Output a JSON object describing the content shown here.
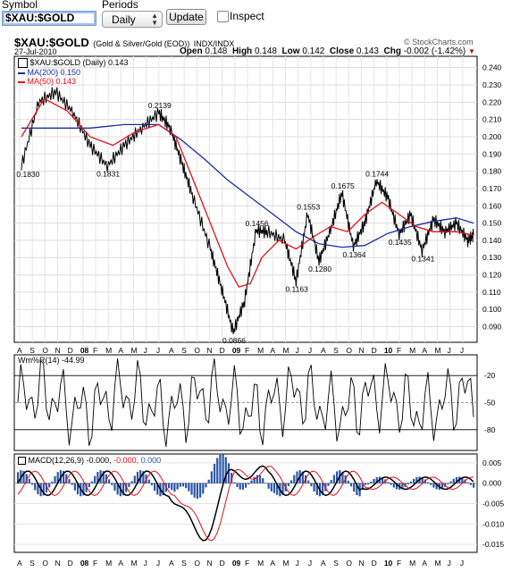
{
  "form": {
    "symbol_label": "Symbol",
    "symbol_value": "$XAU:$GOLD",
    "periods_label": "Periods",
    "periods_value": "Daily",
    "update_label": "Update",
    "inspect_label": "Inspect"
  },
  "header": {
    "symbol": "$XAU:$GOLD",
    "description": "(Gold & Silver/Gold (EOD))",
    "exchange": "INDX/INDX",
    "watermark": "© StockCharts.com",
    "date": "27-Jul-2010",
    "open_label": "Open",
    "open": "0.148",
    "high_label": "High",
    "high": "0.148",
    "low_label": "Low",
    "low": "0.142",
    "close_label": "Close",
    "close": "0.143",
    "chg_label": "Chg",
    "chg": "-0.002 (-1.42%)"
  },
  "colors": {
    "price": "#000000",
    "ma200": "#1a2ca0",
    "ma50": "#e0101a",
    "hist": "#2a55a8",
    "signal": "#e0101a",
    "down_arrow": "#cc0000"
  },
  "legend": {
    "price": "$XAU:$GOLD (Daily) 0.143",
    "ma200": "MA(200) 0.150",
    "ma50": "MA(50) 0.143",
    "willr": "Wm%R(14) -44.99",
    "macd_prefix": "MACD(12,26,9)",
    "macd_val": "-0.000,",
    "signal_val": "-0.000,",
    "hist_val": "0.000"
  },
  "chart_data": {
    "type": "line",
    "x_ticks": [
      "A",
      "S",
      "O",
      "N",
      "D",
      "08",
      "F",
      "M",
      "A",
      "M",
      "J",
      "J",
      "A",
      "S",
      "O",
      "N",
      "D",
      "09",
      "F",
      "M",
      "A",
      "M",
      "J",
      "J",
      "A",
      "S",
      "O",
      "N",
      "D",
      "10",
      "F",
      "M",
      "A",
      "M",
      "J",
      "J"
    ],
    "price_panel": {
      "y_ticks": [
        "0.240",
        "0.230",
        "0.220",
        "0.210",
        "0.200",
        "0.190",
        "0.180",
        "0.170",
        "0.160",
        "0.150",
        "0.140",
        "0.130",
        "0.120",
        "0.110",
        "0.100",
        "0.090"
      ],
      "ylim": [
        0.082,
        0.245
      ],
      "price_points": [
        [
          0,
          0.183
        ],
        [
          3,
          0.22
        ],
        [
          6,
          0.226
        ],
        [
          9,
          0.214
        ],
        [
          12,
          0.195
        ],
        [
          15,
          0.183
        ],
        [
          18,
          0.195
        ],
        [
          21,
          0.205
        ],
        [
          24,
          0.2139
        ],
        [
          26,
          0.205
        ],
        [
          28,
          0.185
        ],
        [
          30,
          0.165
        ],
        [
          33,
          0.135
        ],
        [
          35,
          0.112
        ],
        [
          37,
          0.0866
        ],
        [
          39,
          0.105
        ],
        [
          41,
          0.1456
        ],
        [
          43,
          0.145
        ],
        [
          46,
          0.14
        ],
        [
          48,
          0.1163
        ],
        [
          50,
          0.1553
        ],
        [
          52,
          0.128
        ],
        [
          54,
          0.146
        ],
        [
          56,
          0.1675
        ],
        [
          58,
          0.1364
        ],
        [
          60,
          0.15
        ],
        [
          62,
          0.1744
        ],
        [
          64,
          0.165
        ],
        [
          66,
          0.1435
        ],
        [
          68,
          0.155
        ],
        [
          70,
          0.1341
        ],
        [
          72,
          0.152
        ],
        [
          74,
          0.145
        ],
        [
          76,
          0.15
        ],
        [
          78,
          0.14
        ],
        [
          79,
          0.143
        ]
      ],
      "ma200_points": [
        [
          0,
          0.205
        ],
        [
          6,
          0.205
        ],
        [
          12,
          0.205
        ],
        [
          18,
          0.207
        ],
        [
          24,
          0.207
        ],
        [
          28,
          0.198
        ],
        [
          32,
          0.187
        ],
        [
          36,
          0.175
        ],
        [
          40,
          0.165
        ],
        [
          44,
          0.155
        ],
        [
          48,
          0.145
        ],
        [
          52,
          0.138
        ],
        [
          56,
          0.136
        ],
        [
          60,
          0.137
        ],
        [
          64,
          0.144
        ],
        [
          68,
          0.148
        ],
        [
          72,
          0.151
        ],
        [
          76,
          0.153
        ],
        [
          79,
          0.15
        ]
      ],
      "ma50_points": [
        [
          0,
          0.2
        ],
        [
          4,
          0.222
        ],
        [
          8,
          0.215
        ],
        [
          12,
          0.2
        ],
        [
          16,
          0.195
        ],
        [
          20,
          0.203
        ],
        [
          24,
          0.207
        ],
        [
          27,
          0.2
        ],
        [
          30,
          0.175
        ],
        [
          33,
          0.15
        ],
        [
          36,
          0.125
        ],
        [
          38,
          0.113
        ],
        [
          40,
          0.115
        ],
        [
          42,
          0.13
        ],
        [
          45,
          0.14
        ],
        [
          48,
          0.135
        ],
        [
          51,
          0.142
        ],
        [
          54,
          0.148
        ],
        [
          57,
          0.145
        ],
        [
          60,
          0.155
        ],
        [
          63,
          0.162
        ],
        [
          66,
          0.155
        ],
        [
          69,
          0.148
        ],
        [
          72,
          0.145
        ],
        [
          76,
          0.145
        ],
        [
          79,
          0.143
        ]
      ],
      "annotations": [
        {
          "label": "0.1830",
          "x": 1,
          "y": 0.183
        },
        {
          "label": "0.1831",
          "x": 15,
          "y": 0.1831
        },
        {
          "label": "0.2139",
          "x": 24,
          "y": 0.2139
        },
        {
          "label": "0.0866",
          "x": 37,
          "y": 0.0866
        },
        {
          "label": "0.1456",
          "x": 41,
          "y": 0.1456
        },
        {
          "label": "0.1163",
          "x": 48,
          "y": 0.1163
        },
        {
          "label": "0.1553",
          "x": 50,
          "y": 0.1553
        },
        {
          "label": "0.1280",
          "x": 52,
          "y": 0.128
        },
        {
          "label": "0.1675",
          "x": 56,
          "y": 0.1675
        },
        {
          "label": "0.1364",
          "x": 58,
          "y": 0.1364
        },
        {
          "label": "0.1744",
          "x": 62,
          "y": 0.1744
        },
        {
          "label": "0.1435",
          "x": 66,
          "y": 0.1435
        },
        {
          "label": "0.1341",
          "x": 70,
          "y": 0.1341
        }
      ]
    },
    "willr_panel": {
      "y_ticks": [
        "-20",
        "-50",
        "-80"
      ],
      "ylim": [
        -100,
        0
      ]
    },
    "macd_panel": {
      "y_ticks": [
        "0.005",
        "0.000",
        "-0.005",
        "-0.010",
        "-0.015"
      ],
      "ylim": [
        -0.0165,
        0.0065
      ]
    }
  }
}
